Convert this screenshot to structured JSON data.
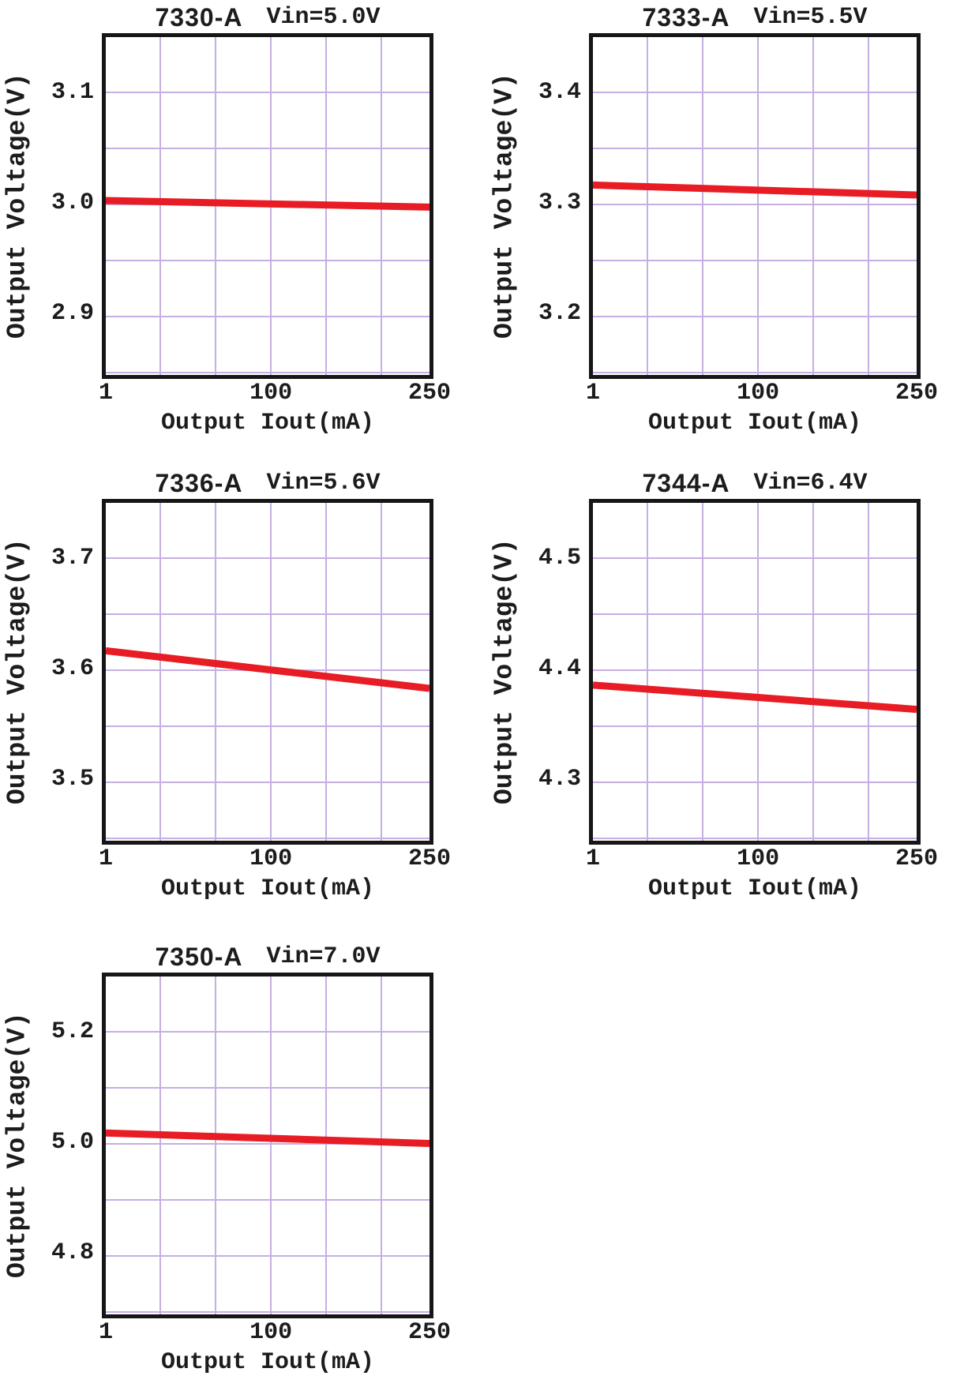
{
  "styles": {
    "grid_color": "#c5afe3",
    "border_color": "#161616",
    "text_color": "#1c1c1c",
    "line_color": "#e81c24"
  },
  "chart_data": [
    {
      "type": "line",
      "title": "7330-A Vin=5.0V",
      "title_part": "7330-A",
      "title_vin": "Vin=5.0V",
      "xlabel": "Output Iout(mA)",
      "ylabel": "Output Voltage(V)",
      "x_tick_labels": [
        "1",
        "100",
        "250"
      ],
      "y_tick_labels": [
        "3.1",
        "3.0",
        "2.9"
      ],
      "x_ticks": [
        1,
        100,
        250
      ],
      "y_ticks": [
        3.1,
        3.0,
        2.9
      ],
      "xlim": [
        1,
        250
      ],
      "ylim": [
        2.845,
        3.151
      ],
      "grid": true,
      "line_color": "#e81c24",
      "series": [
        {
          "name": "output-voltage",
          "x": [
            1,
            250
          ],
          "y": [
            3.003,
            2.997
          ]
        }
      ]
    },
    {
      "type": "line",
      "title": "7333-A Vin=5.5V",
      "title_part": "7333-A",
      "title_vin": "Vin=5.5V",
      "xlabel": "Output Iout(mA)",
      "ylabel": "Output Voltage(V)",
      "x_tick_labels": [
        "1",
        "100",
        "250"
      ],
      "y_tick_labels": [
        "3.4",
        "3.3",
        "3.2"
      ],
      "x_ticks": [
        1,
        100,
        250
      ],
      "y_ticks": [
        3.4,
        3.3,
        3.2
      ],
      "xlim": [
        1,
        250
      ],
      "ylim": [
        3.145,
        3.451
      ],
      "grid": true,
      "line_color": "#e81c24",
      "series": [
        {
          "name": "output-voltage",
          "x": [
            1,
            250
          ],
          "y": [
            3.317,
            3.308
          ]
        }
      ]
    },
    {
      "type": "line",
      "title": "7336-A Vin=5.6V",
      "title_part": "7336-A",
      "title_vin": "Vin=5.6V",
      "xlabel": "Output Iout(mA)",
      "ylabel": "Output Voltage(V)",
      "x_tick_labels": [
        "1",
        "100",
        "250"
      ],
      "y_tick_labels": [
        "3.7",
        "3.6",
        "3.5"
      ],
      "x_ticks": [
        1,
        100,
        250
      ],
      "y_ticks": [
        3.7,
        3.6,
        3.5
      ],
      "xlim": [
        1,
        250
      ],
      "ylim": [
        3.445,
        3.751
      ],
      "grid": true,
      "line_color": "#e81c24",
      "series": [
        {
          "name": "output-voltage",
          "x": [
            1,
            250
          ],
          "y": [
            3.617,
            3.583
          ]
        }
      ]
    },
    {
      "type": "line",
      "title": "7344-A Vin=6.4V",
      "title_part": "7344-A",
      "title_vin": "Vin=6.4V",
      "xlabel": "Output Iout(mA)",
      "ylabel": "Output Voltage(V)",
      "x_tick_labels": [
        "1",
        "100",
        "250"
      ],
      "y_tick_labels": [
        "4.5",
        "4.4",
        "4.3"
      ],
      "x_ticks": [
        1,
        100,
        250
      ],
      "y_ticks": [
        4.5,
        4.4,
        4.3
      ],
      "xlim": [
        1,
        250
      ],
      "ylim": [
        4.245,
        4.551
      ],
      "grid": true,
      "line_color": "#e81c24",
      "series": [
        {
          "name": "output-voltage",
          "x": [
            1,
            250
          ],
          "y": [
            4.386,
            4.364
          ]
        }
      ]
    },
    {
      "type": "line",
      "title": "7350-A Vin=7.0V",
      "title_part": "7350-A",
      "title_vin": "Vin=7.0V",
      "xlabel": "Output Iout(mA)",
      "ylabel": "Output Voltage(V)",
      "x_tick_labels": [
        "1",
        "100",
        "250"
      ],
      "y_tick_labels": [
        "5.2",
        "5.0",
        "4.8"
      ],
      "x_ticks": [
        1,
        100,
        250
      ],
      "y_ticks": [
        5.2,
        5.0,
        4.8
      ],
      "xlim": [
        1,
        250
      ],
      "ylim": [
        4.69,
        5.301
      ],
      "grid": true,
      "line_color": "#e81c24",
      "series": [
        {
          "name": "output-voltage",
          "x": [
            1,
            250
          ],
          "y": [
            5.018,
            4.999
          ]
        }
      ]
    }
  ]
}
